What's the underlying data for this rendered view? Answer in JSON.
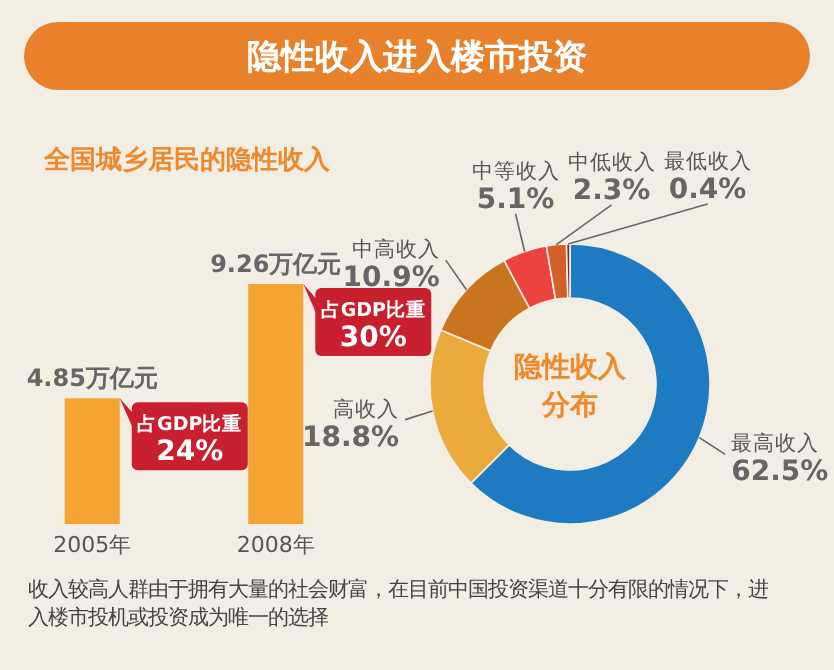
{
  "chart_data": [
    {
      "type": "bar",
      "title": "隐性收入进入楼市投资",
      "subtitle": "全国城乡居民的隐性收入",
      "categories": [
        "2005年",
        "2008年"
      ],
      "values": [
        4.85,
        9.26
      ],
      "value_labels": [
        "4.85万亿元",
        "9.26万亿元"
      ],
      "color": "#f5a431",
      "annotations": [
        {
          "text": "占GDP比重 24%",
          "x": "2005年",
          "y": 4.85
        },
        {
          "text": "占GDP比重 30%",
          "x": "2008年",
          "y": 9.26
        },
        "收入较高人群由于拥有大量的社会财富，在目前中国投资渠道十分有限的情况下，进入楼市投机或投资成为唯一的选择"
      ]
    },
    {
      "type": "donut",
      "title": "隐性收入分布",
      "categories": [
        "最高收入",
        "高收入",
        "中高收入",
        "中等收入",
        "中低收入",
        "最低收入"
      ],
      "values": [
        62.5,
        18.8,
        10.9,
        5.1,
        2.3,
        0.4
      ],
      "value_labels": [
        "62.5%",
        "18.8%",
        "10.9%",
        "5.1%",
        "2.3%",
        "0.4%"
      ],
      "colors": [
        "#1f7bc1",
        "#eaab3c",
        "#c9741f",
        "#ec4340",
        "#d2602a",
        "#8a2a1e"
      ]
    }
  ]
}
